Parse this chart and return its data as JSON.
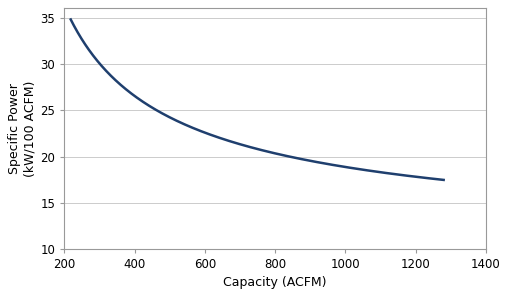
{
  "title": "",
  "xlabel": "Capacity (ACFM)",
  "ylabel": "Specific Power\n(kW/100 ACFM)",
  "xlim": [
    200,
    1400
  ],
  "ylim": [
    10,
    36
  ],
  "xticks": [
    200,
    400,
    600,
    800,
    1000,
    1200,
    1400
  ],
  "yticks": [
    10,
    15,
    20,
    25,
    30,
    35
  ],
  "line_color": "#1F3F6E",
  "line_width": 1.8,
  "bg_color": "#FFFFFF",
  "fig_color": "#FFFFFF",
  "grid_color": "#CCCCCC",
  "border_color": "#999999",
  "curve_x_start": 218,
  "curve_x_end": 1280,
  "curve_a": 646.0,
  "curve_b": 11.68,
  "curve_power": 0.62,
  "xlabel_fontsize": 9,
  "ylabel_fontsize": 9,
  "tick_fontsize": 8.5
}
